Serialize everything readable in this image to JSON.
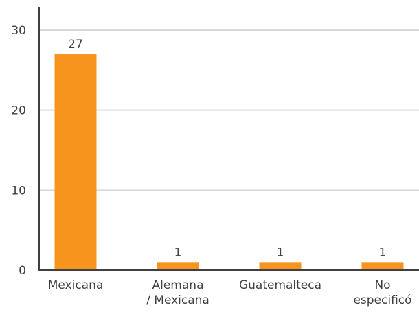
{
  "chart_data": {
    "type": "bar",
    "categories": [
      [
        "Mexicana"
      ],
      [
        "Alemana",
        "/ Mexicana"
      ],
      [
        "Guatemalteca"
      ],
      [
        "No",
        "especificó"
      ]
    ],
    "values": [
      27,
      1,
      1,
      1
    ],
    "data_labels": [
      "27",
      "1",
      "1",
      "1"
    ],
    "yticks": [
      0,
      10,
      20,
      30
    ],
    "ytick_labels": [
      "0",
      "10",
      "20",
      "30"
    ],
    "ylim": [
      0,
      30
    ],
    "title": "",
    "xlabel": "",
    "ylabel": "",
    "grid": true,
    "bar_color": "#F7941D",
    "grid_color": "#D9D9D9",
    "axis_color": "#404040"
  }
}
